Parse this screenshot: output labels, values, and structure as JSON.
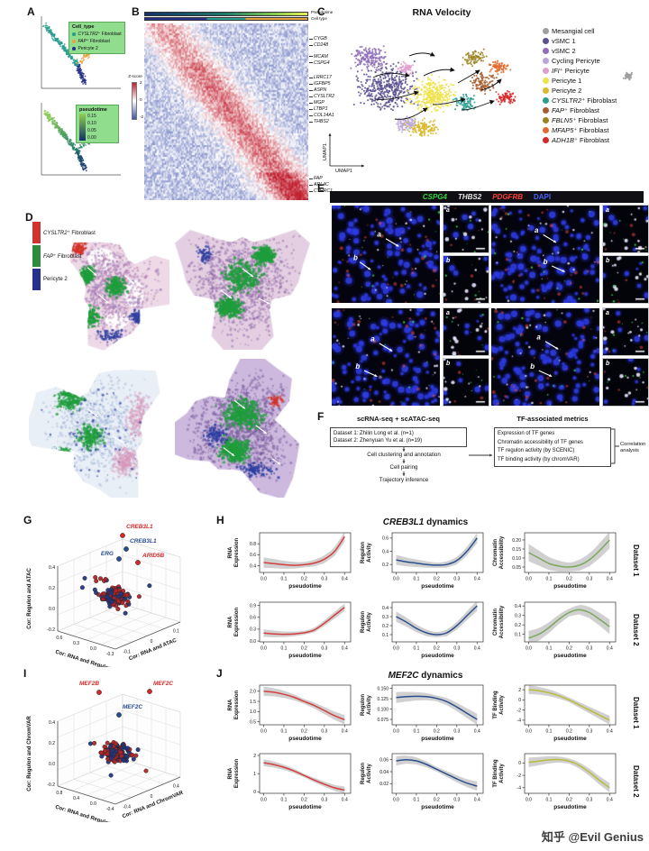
{
  "watermark": {
    "text": "知乎 @Evil Genius"
  },
  "panelA": {
    "label": "A",
    "cell_type_legend": {
      "title": "Cell_type",
      "items": [
        {
          "prefix": "CYSLTR2⁺",
          "rest": " Fibroblast",
          "color": "#2a9d8f"
        },
        {
          "prefix": "FAP⁺",
          "rest": " Fibroblast",
          "color": "#e8a33d"
        },
        {
          "prefix": "",
          "rest": "Pericyte 2",
          "color": "#27318c"
        }
      ]
    },
    "pseudotime_legend": {
      "title": "pseudotime",
      "ticks": [
        "0.15",
        "0.10",
        "0.05",
        "0.00"
      ],
      "gradient_top": "#8fd14f",
      "gradient_bottom": "#13306b"
    }
  },
  "panelB": {
    "label": "B",
    "annotation_labels": [
      "Pseudotime",
      "Cell type"
    ],
    "zscore": {
      "title": "Z-score",
      "ticks": [
        "2",
        "0",
        "-2"
      ]
    },
    "gene_groups": [
      {
        "at": 0.07,
        "genes": [
          "CYGB",
          "CD248"
        ]
      },
      {
        "at": 0.17,
        "genes": [
          "MCAM",
          "CSPG4"
        ]
      },
      {
        "at": 0.29,
        "genes": [
          "LRRC17",
          "IGFBP5",
          "ASPN",
          "CYSLTR2",
          "MGP",
          "LTBP1",
          "COL14A1",
          "THBS2"
        ]
      },
      {
        "at": 0.86,
        "genes": [
          "FAP",
          "ARL4C",
          "CTHRC1"
        ]
      }
    ]
  },
  "panelC": {
    "label": "C",
    "title": "RNA Velocity",
    "xlabel": "UMAP1",
    "ylabel": "UMAP1",
    "legend": [
      {
        "prefix": "",
        "rest": "Mesangial cell",
        "color": "#9e9e9e"
      },
      {
        "prefix": "",
        "rest": "vSMC 1",
        "color": "#5a5190"
      },
      {
        "prefix": "",
        "rest": "vSMC 2",
        "color": "#8f6fb8"
      },
      {
        "prefix": "",
        "rest": "Cycling Pericyte",
        "color": "#b9a6d9"
      },
      {
        "prefix": "IFI⁺",
        "rest": " Pericyte",
        "color": "#df9fce"
      },
      {
        "prefix": "",
        "rest": "Pericyte 1",
        "color": "#efe24b"
      },
      {
        "prefix": "",
        "rest": "Pericyte 2",
        "color": "#d9b82e"
      },
      {
        "prefix": "CYSLTR2⁺",
        "rest": " Fibroblast",
        "color": "#2a9d8f"
      },
      {
        "prefix": "FAP⁺",
        "rest": " Fibroblast",
        "color": "#a65e2e"
      },
      {
        "prefix": "FBLN5⁺",
        "rest": " Fibroblast",
        "color": "#9c8320"
      },
      {
        "prefix": "MFAP5⁺",
        "rest": " Fibroblast",
        "color": "#e06a2b"
      },
      {
        "prefix": "ADH1B⁺",
        "rest": " Fibroblast",
        "color": "#d62728"
      }
    ]
  },
  "panelD": {
    "label": "D",
    "legend": [
      {
        "prefix": "CYSLTR2⁺",
        "rest": " Fibroblast",
        "color": "#d0342c"
      },
      {
        "prefix": "FAP⁺",
        "rest": " Fibroblast",
        "color": "#2e8b3d"
      },
      {
        "prefix": "",
        "rest": "Pericyte 2",
        "color": "#27318c"
      }
    ]
  },
  "panelE": {
    "label": "E",
    "markers": [
      {
        "text": "CSPG4",
        "color": "#35d43c"
      },
      {
        "text": "THBS2",
        "color": "#e8e8e8"
      },
      {
        "text": "PDGFRB",
        "color": "#ff4136"
      },
      {
        "text": "DAPI",
        "color": "#4d61ff"
      }
    ],
    "inset_labels": [
      "a",
      "b"
    ]
  },
  "panelF": {
    "label": "F",
    "left_title": "scRNA-seq +  scATAC-seq",
    "right_title": "TF-associated metrics",
    "dataset_lines": [
      "Dataset 1: Zhilin Long et al. (n=1)",
      "Dataset 2: Zhenyuan Yu et al. (n=19)"
    ],
    "steps": [
      "Cell clustering and annotation",
      "Cell pairing",
      "Trajectory inference"
    ],
    "metrics": [
      "Expression of TF genes",
      "Chromatin accessibility of TF genes",
      "TF regulon activity (by SCENIC)",
      "TF binding activity (by chromVAR)"
    ],
    "correlation": "Correlation analysis"
  },
  "panelG": {
    "label": "G",
    "zlabel": "Cor: Regulon and ATAC",
    "xlabel": "Cor: RNA and Regulon",
    "ylabel": "Cor: RNA and ATAC",
    "zticks": [
      "0.4",
      "0.2",
      "0.0",
      "-0.2"
    ],
    "xticks": [
      "0.6",
      "0.3",
      "0.0",
      "-0.3"
    ],
    "yticks": [
      "-0.1",
      "0",
      "0.1"
    ],
    "gene_labels": [
      {
        "text": "CREB3L1",
        "color": "#d62728"
      },
      {
        "text": "CREB3L1",
        "color": "#2b4d8e"
      },
      {
        "text": "ERG",
        "color": "#2b4d8e"
      },
      {
        "text": "ARID5B",
        "color": "#d62728"
      }
    ]
  },
  "panelH": {
    "label": "H",
    "title_gene": "CREB3L1",
    "title_rest": " dynamics",
    "xlabel": "pseudotime",
    "xticks": [
      "0.0",
      "0.1",
      "0.2",
      "0.3",
      "0.4"
    ],
    "rows": [
      {
        "dataset": "Dataset 1",
        "plots": [
          {
            "ylabel": [
              "RNA",
              "Expression"
            ],
            "color": "#d43d3d",
            "ylim": [
              0.28,
              1.0
            ],
            "yticks": [
              "0.4",
              "0.6",
              "0.8"
            ],
            "y": [
              0.46,
              0.44,
              0.42,
              0.41,
              0.42,
              0.45,
              0.52,
              0.66,
              0.93
            ],
            "band": 0.05
          },
          {
            "ylabel": [
              "Regulon",
              "Activity"
            ],
            "color": "#2b4d8e",
            "ylim": [
              0.08,
              0.68
            ],
            "yticks": [
              "0.2",
              "0.4",
              "0.6"
            ],
            "y": [
              0.27,
              0.24,
              0.22,
              0.2,
              0.19,
              0.2,
              0.26,
              0.4,
              0.6
            ],
            "band": 0.04
          },
          {
            "ylabel": [
              "Chromatin",
              "Accessibility"
            ],
            "color": "#7aa85c",
            "ylim": [
              0.02,
              0.24
            ],
            "yticks": [
              "0.05",
              "0.10",
              "0.15",
              "0.20"
            ],
            "y": [
              0.13,
              0.1,
              0.07,
              0.055,
              0.05,
              0.06,
              0.09,
              0.14,
              0.2
            ],
            "band": 0.025
          }
        ]
      },
      {
        "dataset": "Dataset 2",
        "plots": [
          {
            "ylabel": [
              "RNA",
              "Expression"
            ],
            "color": "#d43d3d",
            "ylim": [
              -0.02,
              0.98
            ],
            "yticks": [
              "0.0",
              "0.3",
              "0.6",
              "0.9"
            ],
            "y": [
              0.2,
              0.18,
              0.17,
              0.18,
              0.21,
              0.28,
              0.45,
              0.65,
              0.85
            ],
            "band": 0.05
          },
          {
            "ylabel": [
              "Regulon",
              "Activity"
            ],
            "color": "#2b4d8e",
            "ylim": [
              0.02,
              0.46
            ],
            "yticks": [
              "0.1",
              "0.2",
              "0.3",
              "0.4"
            ],
            "y": [
              0.3,
              0.24,
              0.17,
              0.12,
              0.1,
              0.12,
              0.2,
              0.31,
              0.42
            ],
            "band": 0.03
          },
          {
            "ylabel": [
              "Chromatin",
              "Accessibility"
            ],
            "color": "#7aa85c",
            "ylim": [
              0.02,
              0.44
            ],
            "yticks": [
              "0.1",
              "0.2",
              "0.3",
              "0.4"
            ],
            "y": [
              0.06,
              0.1,
              0.17,
              0.26,
              0.33,
              0.36,
              0.33,
              0.26,
              0.18
            ],
            "band": 0.04
          }
        ]
      }
    ]
  },
  "panelI": {
    "label": "I",
    "zlabel": "Cor: Regulon and ChromVAR",
    "xlabel": "Cor: RNA and Regulon",
    "ylabel": "Cor: RNA and ChromVAR",
    "zticks": [
      "0.4",
      "0.2",
      "0.0",
      "-0.2"
    ],
    "xticks": [
      "0.8",
      "0.4",
      "0.0",
      "-0.4"
    ],
    "yticks": [
      "-0.4",
      "0",
      "0.4"
    ],
    "gene_labels": [
      {
        "text": "MEF2B",
        "color": "#d62728"
      },
      {
        "text": "MEF2C",
        "color": "#d62728"
      },
      {
        "text": "MEF2C",
        "color": "#2b4d8e"
      }
    ]
  },
  "panelJ": {
    "label": "J",
    "title_gene": "MEF2C",
    "title_rest": " dynamics",
    "xlabel": "pseudotime",
    "xticks": [
      "0.0",
      "0.1",
      "0.2",
      "0.3",
      "0.4"
    ],
    "rows": [
      {
        "dataset": "Dataset 1",
        "plots": [
          {
            "ylabel": [
              "RNA",
              "Expression"
            ],
            "color": "#d43d3d",
            "ylim": [
              0.35,
              2.3
            ],
            "yticks": [
              "0.5",
              "1.0",
              "1.5",
              "2.0"
            ],
            "y": [
              2.0,
              1.95,
              1.85,
              1.7,
              1.5,
              1.3,
              1.05,
              0.8,
              0.6
            ],
            "band": 0.12
          },
          {
            "ylabel": [
              "Regulon",
              "Activity"
            ],
            "color": "#2b4d8e",
            "ylim": [
              0.062,
              0.158
            ],
            "yticks": [
              "0.075",
              "0.100",
              "0.125",
              "0.150"
            ],
            "y": [
              0.128,
              0.13,
              0.131,
              0.13,
              0.126,
              0.118,
              0.105,
              0.09,
              0.075
            ],
            "band": 0.007
          },
          {
            "ylabel": [
              "TF Binding",
              "Activity"
            ],
            "color": "#b8bc3a",
            "ylim": [
              -4.9,
              2.9
            ],
            "yticks": [
              "-4",
              "-2",
              "0",
              "2"
            ],
            "y": [
              2.0,
              1.8,
              1.4,
              0.8,
              0.0,
              -1.0,
              -2.0,
              -3.0,
              -4.0
            ],
            "band": 0.45
          }
        ]
      },
      {
        "dataset": "Dataset 2",
        "plots": [
          {
            "ylabel": [
              "RNA",
              "Expression"
            ],
            "color": "#d43d3d",
            "ylim": [
              -0.08,
              2.1
            ],
            "yticks": [
              "0",
              "1",
              "2"
            ],
            "y": [
              1.6,
              1.5,
              1.35,
              1.15,
              0.9,
              0.65,
              0.42,
              0.22,
              0.1
            ],
            "band": 0.1
          },
          {
            "ylabel": [
              "Regulon",
              "Activity"
            ],
            "color": "#2b4d8e",
            "ylim": [
              0.004,
              0.07
            ],
            "yticks": [
              "0.02",
              "0.04",
              "0.06"
            ],
            "y": [
              0.058,
              0.06,
              0.058,
              0.052,
              0.044,
              0.036,
              0.028,
              0.021,
              0.016
            ],
            "band": 0.004
          },
          {
            "ylabel": [
              "TF Binding",
              "Activity"
            ],
            "color": "#b8bc3a",
            "ylim": [
              -4.9,
              1.5
            ],
            "yticks": [
              "-4",
              "-2",
              "0"
            ],
            "y": [
              0.1,
              0.3,
              0.5,
              0.55,
              0.3,
              -0.4,
              -1.5,
              -2.8,
              -4.0
            ],
            "band": 0.4
          }
        ]
      }
    ]
  }
}
